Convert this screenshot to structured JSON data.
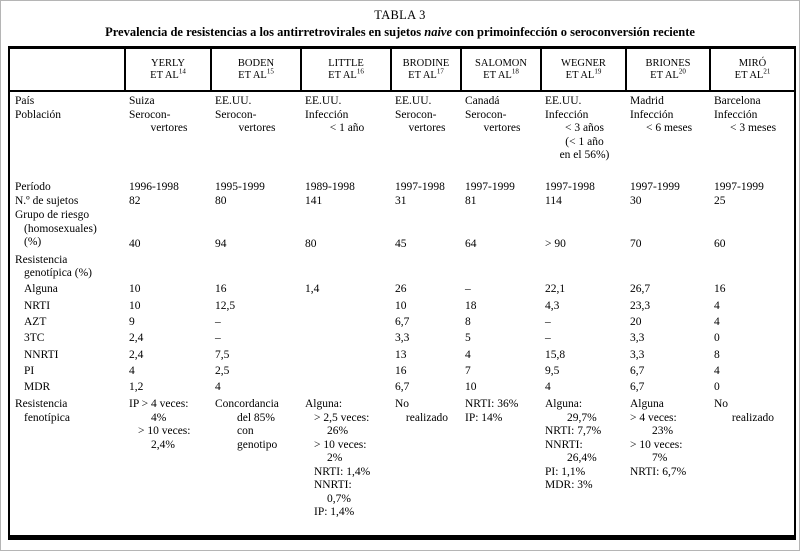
{
  "title": {
    "caption": "TABLA 3",
    "subtitle_pre": "Prevalencia de resistencias a los antirretrovirales en sujetos ",
    "subtitle_italic": "naive",
    "subtitle_post": " con primoinfección o seroconversión reciente"
  },
  "header": {
    "columns": [
      {
        "name": "YERLY",
        "etal": "ET AL",
        "ref": "14"
      },
      {
        "name": "BODEN",
        "etal": "ET AL",
        "ref": "15"
      },
      {
        "name": "LITTLE",
        "etal": "ET AL",
        "ref": "16"
      },
      {
        "name": "BRODINE",
        "etal": "ET AL",
        "ref": "17"
      },
      {
        "name": "SALOMON",
        "etal": "ET AL",
        "ref": "18"
      },
      {
        "name": "WEGNER",
        "etal": "ET AL",
        "ref": "19"
      },
      {
        "name": "BRIONES",
        "etal": "ET AL",
        "ref": "20"
      },
      {
        "name": "MIRÓ",
        "etal": "ET AL",
        "ref": "21"
      }
    ]
  },
  "rows": [
    {
      "id": "pais",
      "label": [
        [
          "País",
          "l"
        ],
        [
          "Población",
          "l"
        ]
      ],
      "cells": [
        [
          [
            "Suiza",
            "l"
          ],
          [
            "Serocon-",
            "l"
          ],
          [
            "vertores",
            "c"
          ]
        ],
        [
          [
            "EE.UU.",
            "l"
          ],
          [
            "Serocon-",
            "l"
          ],
          [
            "vertores",
            "c"
          ]
        ],
        [
          [
            "EE.UU.",
            "l"
          ],
          [
            "Infección",
            "l"
          ],
          [
            "< 1 año",
            "c"
          ]
        ],
        [
          [
            "EE.UU.",
            "l"
          ],
          [
            "Serocon-",
            "l"
          ],
          [
            "vertores",
            "c"
          ]
        ],
        [
          [
            "Canadá",
            "l"
          ],
          [
            "Serocon-",
            "l"
          ],
          [
            "vertores",
            "c"
          ]
        ],
        [
          [
            "EE.UU.",
            "l"
          ],
          [
            "Infección",
            "l"
          ],
          [
            "< 3 años",
            "c"
          ],
          [
            "(< 1 año",
            "c"
          ],
          [
            "en el 56%)",
            "c"
          ]
        ],
        [
          [
            "Madrid",
            "l"
          ],
          [
            "Infección",
            "l"
          ],
          [
            "< 6 meses",
            "c"
          ]
        ],
        [
          [
            "Barcelona",
            "l"
          ],
          [
            "Infección",
            "l"
          ],
          [
            "< 3 meses",
            "c"
          ]
        ]
      ]
    },
    {
      "id": "periodo",
      "label": [
        [
          "Período",
          "l"
        ]
      ],
      "cells": [
        [
          [
            "1996-1998",
            "l"
          ]
        ],
        [
          [
            "1995-1999",
            "l"
          ]
        ],
        [
          [
            "1989-1998",
            "l"
          ]
        ],
        [
          [
            "1997-1998",
            "l"
          ]
        ],
        [
          [
            "1997-1999",
            "l"
          ]
        ],
        [
          [
            "1997-1998",
            "l"
          ]
        ],
        [
          [
            "1997-1999",
            "l"
          ]
        ],
        [
          [
            "1997-1999",
            "l"
          ]
        ]
      ]
    },
    {
      "id": "sujetos",
      "label": [
        [
          "N.º de sujetos",
          "l"
        ]
      ],
      "cells": [
        [
          [
            "82",
            "l"
          ]
        ],
        [
          [
            "80",
            "l"
          ]
        ],
        [
          [
            "141",
            "l"
          ]
        ],
        [
          [
            "31",
            "l"
          ]
        ],
        [
          [
            "81",
            "l"
          ]
        ],
        [
          [
            "114",
            "l"
          ]
        ],
        [
          [
            "30",
            "l"
          ]
        ],
        [
          [
            "25",
            "l"
          ]
        ]
      ]
    },
    {
      "id": "grupo",
      "valign": "bottom",
      "label": [
        [
          "Grupo de riesgo",
          "l"
        ],
        [
          "(homosexuales)",
          "i1"
        ],
        [
          "(%)",
          "i1"
        ]
      ],
      "cells": [
        [
          [
            "40",
            "l"
          ]
        ],
        [
          [
            "94",
            "l"
          ]
        ],
        [
          [
            "80",
            "l"
          ]
        ],
        [
          [
            "45",
            "l"
          ]
        ],
        [
          [
            "64",
            "l"
          ]
        ],
        [
          [
            "> 90",
            "l"
          ]
        ],
        [
          [
            "70",
            "l"
          ]
        ],
        [
          [
            "60",
            "l"
          ]
        ]
      ]
    },
    {
      "id": "geno-header",
      "label": [
        [
          "Resistencia",
          "l"
        ],
        [
          "genotípica (%)",
          "i1"
        ]
      ],
      "cells": null
    },
    {
      "id": "alguna",
      "label": [
        [
          "Alguna",
          "i1"
        ]
      ],
      "cells": [
        [
          [
            "10",
            "l"
          ]
        ],
        [
          [
            "16",
            "l"
          ]
        ],
        [
          [
            "1,4",
            "l"
          ]
        ],
        [
          [
            "26",
            "l"
          ]
        ],
        [
          [
            "–",
            "l"
          ]
        ],
        [
          [
            "22,1",
            "l"
          ]
        ],
        [
          [
            "26,7",
            "l"
          ]
        ],
        [
          [
            "16",
            "l"
          ]
        ]
      ]
    },
    {
      "id": "nrti",
      "label": [
        [
          "NRTI",
          "i1"
        ]
      ],
      "cells": [
        [
          [
            "10",
            "l"
          ]
        ],
        [
          [
            "12,5",
            "l"
          ]
        ],
        [],
        [
          [
            "10",
            "l"
          ]
        ],
        [
          [
            "18",
            "l"
          ]
        ],
        [
          [
            "4,3",
            "l"
          ]
        ],
        [
          [
            "23,3",
            "l"
          ]
        ],
        [
          [
            "4",
            "l"
          ]
        ]
      ]
    },
    {
      "id": "azt",
      "label": [
        [
          "AZT",
          "i1"
        ]
      ],
      "cells": [
        [
          [
            "9",
            "l"
          ]
        ],
        [
          [
            "–",
            "l"
          ]
        ],
        [],
        [
          [
            "6,7",
            "l"
          ]
        ],
        [
          [
            "8",
            "l"
          ]
        ],
        [
          [
            "–",
            "l"
          ]
        ],
        [
          [
            "20",
            "l"
          ]
        ],
        [
          [
            "4",
            "l"
          ]
        ]
      ]
    },
    {
      "id": "tc3",
      "label": [
        [
          "3TC",
          "i1"
        ]
      ],
      "cells": [
        [
          [
            "2,4",
            "l"
          ]
        ],
        [
          [
            "–",
            "l"
          ]
        ],
        [],
        [
          [
            "3,3",
            "l"
          ]
        ],
        [
          [
            "5",
            "l"
          ]
        ],
        [
          [
            "–",
            "l"
          ]
        ],
        [
          [
            "3,3",
            "l"
          ]
        ],
        [
          [
            "0",
            "l"
          ]
        ]
      ]
    },
    {
      "id": "nnrti",
      "label": [
        [
          "NNRTI",
          "i1"
        ]
      ],
      "cells": [
        [
          [
            "2,4",
            "l"
          ]
        ],
        [
          [
            "7,5",
            "l"
          ]
        ],
        [],
        [
          [
            "13",
            "l"
          ]
        ],
        [
          [
            "4",
            "l"
          ]
        ],
        [
          [
            "15,8",
            "l"
          ]
        ],
        [
          [
            "3,3",
            "l"
          ]
        ],
        [
          [
            "8",
            "l"
          ]
        ]
      ]
    },
    {
      "id": "pi",
      "label": [
        [
          "PI",
          "i1"
        ]
      ],
      "cells": [
        [
          [
            "4",
            "l"
          ]
        ],
        [
          [
            "2,5",
            "l"
          ]
        ],
        [],
        [
          [
            "16",
            "l"
          ]
        ],
        [
          [
            "7",
            "l"
          ]
        ],
        [
          [
            "9,5",
            "l"
          ]
        ],
        [
          [
            "6,7",
            "l"
          ]
        ],
        [
          [
            "4",
            "l"
          ]
        ]
      ]
    },
    {
      "id": "mdr",
      "label": [
        [
          "MDR",
          "i1"
        ]
      ],
      "cells": [
        [
          [
            "1,2",
            "l"
          ]
        ],
        [
          [
            "4",
            "l"
          ]
        ],
        [],
        [
          [
            "6,7",
            "l"
          ]
        ],
        [
          [
            "10",
            "l"
          ]
        ],
        [
          [
            "4",
            "l"
          ]
        ],
        [
          [
            "6,7",
            "l"
          ]
        ],
        [
          [
            "0",
            "l"
          ]
        ]
      ]
    },
    {
      "id": "fenotipica",
      "label": [
        [
          "Resistencia",
          "l"
        ],
        [
          "fenotípica",
          "i1"
        ]
      ],
      "cells": [
        [
          [
            "IP > 4 veces:",
            "l"
          ],
          [
            "4%",
            "i2"
          ],
          [
            "> 10 veces:",
            "i1"
          ],
          [
            "2,4%",
            "i2"
          ]
        ],
        [
          [
            "Concordancia",
            "l"
          ],
          [
            "del 85%",
            "i2"
          ],
          [
            "con",
            "i2"
          ],
          [
            "genotipo",
            "i2"
          ]
        ],
        [
          [
            "Alguna:",
            "l"
          ],
          [
            "> 2,5 veces:",
            "i1"
          ],
          [
            "26%",
            "i2"
          ],
          [
            "> 10 veces:",
            "i1"
          ],
          [
            "2%",
            "i2"
          ],
          [
            "NRTI: 1,4%",
            "i1"
          ],
          [
            "NNRTI:",
            "i1"
          ],
          [
            "0,7%",
            "i2"
          ],
          [
            "IP: 1,4%",
            "i1"
          ]
        ],
        [
          [
            "No",
            "l"
          ],
          [
            "realizado",
            "c"
          ]
        ],
        [
          [
            "NRTI: 36%",
            "l"
          ],
          [
            "IP: 14%",
            "l"
          ]
        ],
        [
          [
            "Alguna:",
            "l"
          ],
          [
            "29,7%",
            "i2"
          ],
          [
            "NRTI: 7,7%",
            "l"
          ],
          [
            "NNRTI:",
            "l"
          ],
          [
            "26,4%",
            "i2"
          ],
          [
            "PI: 1,1%",
            "l"
          ],
          [
            "MDR: 3%",
            "l"
          ]
        ],
        [
          [
            "Alguna",
            "l"
          ],
          [
            "> 4 veces:",
            "l"
          ],
          [
            "23%",
            "i2"
          ],
          [
            "> 10 veces:",
            "l"
          ],
          [
            "7%",
            "i2"
          ],
          [
            "NRTI: 6,7%",
            "l"
          ]
        ],
        [
          [
            "No",
            "l"
          ],
          [
            "realizado",
            "c"
          ]
        ]
      ]
    }
  ]
}
